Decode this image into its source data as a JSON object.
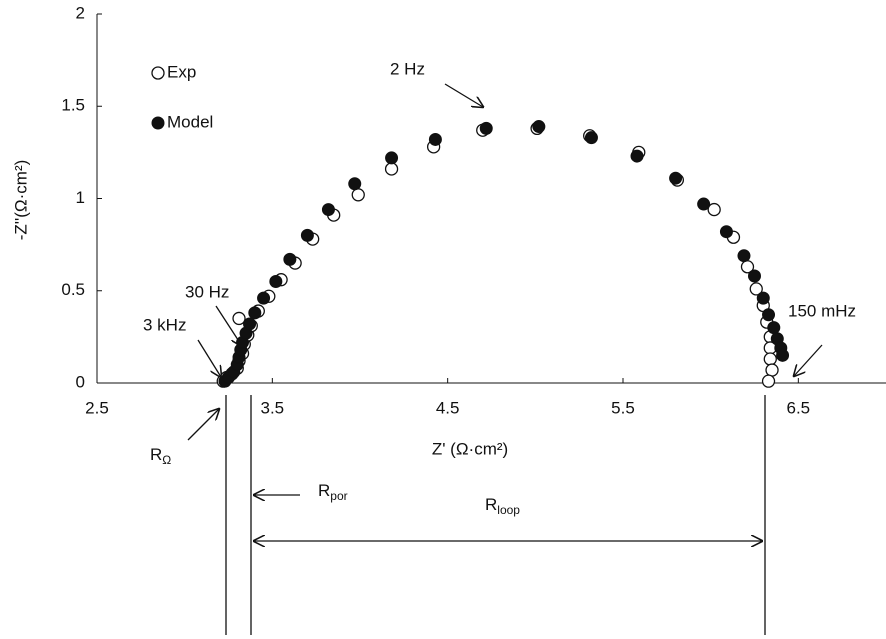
{
  "chart_data": {
    "type": "scatter",
    "xlabel": "Z' (Ω·cm²)",
    "ylabel": "-Z''(Ω·cm²)",
    "xlim": [
      2.5,
      7
    ],
    "xticks": [
      2.5,
      3.5,
      4.5,
      5.5,
      6.5
    ],
    "ylim": [
      0,
      2
    ],
    "yticks": [
      0,
      0.5,
      1,
      1.5,
      2
    ],
    "legend": "upper left",
    "series": [
      {
        "name": "Exp",
        "color": "#111111",
        "marker": "open",
        "x": [
          3.22,
          3.24,
          3.27,
          3.3,
          3.31,
          3.31,
          3.33,
          3.34,
          3.36,
          3.38,
          3.42,
          3.48,
          3.55,
          3.63,
          3.73,
          3.85,
          3.99,
          4.18,
          4.42,
          4.7,
          5.01,
          5.31,
          5.59,
          5.81,
          6.02,
          6.13,
          6.21,
          6.26,
          6.3,
          6.32,
          6.34,
          6.34,
          6.34,
          6.35,
          6.33
        ],
        "values": [
          0.01,
          0.03,
          0.05,
          0.08,
          0.35,
          0.12,
          0.16,
          0.21,
          0.26,
          0.31,
          0.39,
          0.47,
          0.56,
          0.65,
          0.78,
          0.91,
          1.02,
          1.16,
          1.28,
          1.37,
          1.38,
          1.34,
          1.25,
          1.1,
          0.94,
          0.79,
          0.63,
          0.51,
          0.42,
          0.33,
          0.25,
          0.19,
          0.13,
          0.07,
          0.01
        ]
      },
      {
        "name": "Model",
        "color": "#111111",
        "marker": "filled",
        "x": [
          3.23,
          3.25,
          3.28,
          3.3,
          3.31,
          3.32,
          3.33,
          3.35,
          3.37,
          3.4,
          3.45,
          3.52,
          3.6,
          3.7,
          3.82,
          3.97,
          4.18,
          4.43,
          4.72,
          5.02,
          5.32,
          5.58,
          5.8,
          5.96,
          6.09,
          6.19,
          6.25,
          6.3,
          6.33,
          6.36,
          6.38,
          6.4,
          6.41
        ],
        "values": [
          0.01,
          0.03,
          0.06,
          0.1,
          0.14,
          0.18,
          0.22,
          0.27,
          0.32,
          0.38,
          0.46,
          0.55,
          0.67,
          0.8,
          0.94,
          1.08,
          1.22,
          1.32,
          1.38,
          1.39,
          1.33,
          1.23,
          1.11,
          0.97,
          0.82,
          0.69,
          0.58,
          0.46,
          0.37,
          0.3,
          0.24,
          0.19,
          0.15
        ]
      }
    ],
    "annotations": [
      "2 Hz",
      "30 Hz",
      "3 kHz",
      "150 mHz"
    ],
    "resistances": [
      {
        "text": "R",
        "sub": "Ω"
      },
      {
        "text": "R",
        "sub": "por"
      },
      {
        "text": "R",
        "sub": "loop"
      }
    ]
  }
}
